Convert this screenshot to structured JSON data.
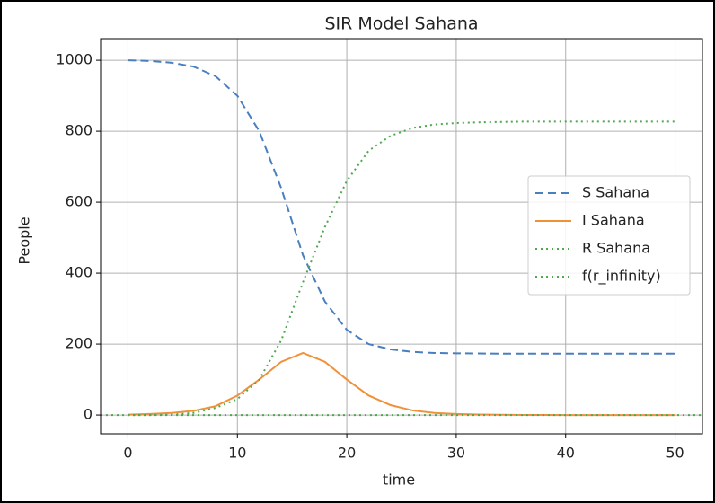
{
  "chart_data": {
    "type": "line",
    "title": "SIR Model Sahana",
    "xlabel": "time",
    "ylabel": "People",
    "x": [
      0,
      2,
      4,
      6,
      8,
      10,
      12,
      14,
      16,
      18,
      20,
      22,
      24,
      26,
      28,
      30,
      32,
      34,
      36,
      38,
      40,
      42,
      44,
      46,
      48,
      50
    ],
    "series": [
      {
        "name": "S Sahana",
        "color": "#4a7fbf",
        "linestyle": "dashed",
        "values": [
          1000,
          998,
          993,
          982,
          955,
          900,
          800,
          640,
          450,
          320,
          240,
          200,
          185,
          178,
          175,
          174,
          173.5,
          173,
          173,
          173,
          173,
          173,
          173,
          173,
          173,
          173
        ]
      },
      {
        "name": "I Sahana",
        "color": "#f0913a",
        "linestyle": "solid",
        "values": [
          1,
          3,
          6,
          12,
          25,
          55,
          100,
          150,
          175,
          150,
          100,
          55,
          28,
          13,
          6,
          3,
          1.5,
          0.7,
          0.3,
          0.1,
          0,
          0,
          0,
          0,
          0,
          0
        ]
      },
      {
        "name": "R Sahana",
        "color": "#4fa84f",
        "linestyle": "dotted",
        "values": [
          0,
          0,
          1,
          6,
          20,
          45,
          100,
          210,
          375,
          530,
          660,
          745,
          787,
          809,
          819,
          823,
          825,
          826,
          827,
          827,
          827,
          827,
          827,
          827,
          827,
          827
        ]
      },
      {
        "name": "f(r_infinity)",
        "color": "#4fa84f",
        "linestyle": "dotted",
        "x": [
          -2.5,
          52.5
        ],
        "values": [
          0,
          0
        ]
      }
    ],
    "xlim": [
      -2.5,
      52.5
    ],
    "xticks": [
      0,
      10,
      20,
      30,
      40,
      50
    ],
    "ylim": [
      -53,
      1061
    ],
    "yticks": [
      0,
      200,
      400,
      600,
      800,
      1000
    ],
    "grid": true,
    "legend": "center right"
  }
}
